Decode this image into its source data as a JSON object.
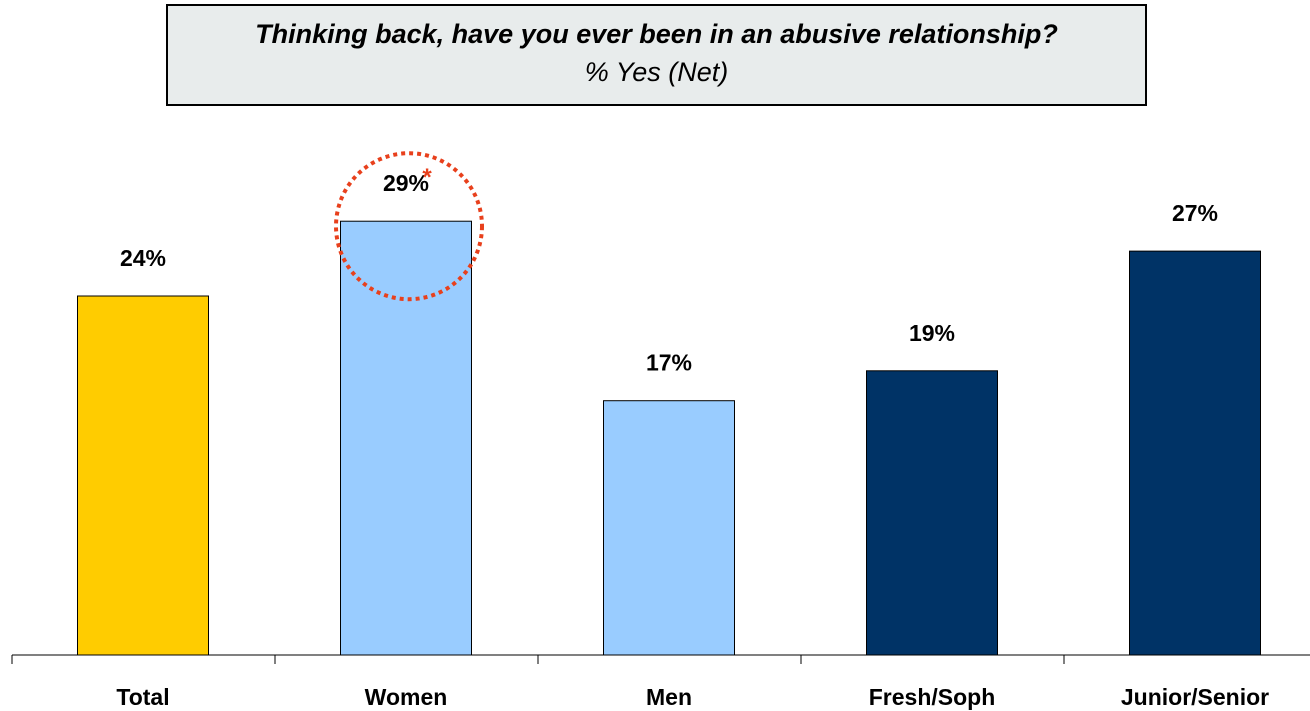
{
  "chart_data": {
    "type": "bar",
    "title": "Thinking back, have you ever been in an abusive relationship?",
    "subtitle": "% Yes (Net)",
    "categories": [
      "Total",
      "Women",
      "Men",
      "Fresh/Soph",
      "Junior/Senior"
    ],
    "values": [
      24,
      29,
      17,
      19,
      27
    ],
    "value_labels": [
      "24%",
      "29%",
      "17%",
      "19%",
      "27%"
    ],
    "bar_colors": [
      "#ffcc00",
      "#99ccff",
      "#99ccff",
      "#003366",
      "#003366"
    ],
    "highlight": {
      "category": "Women",
      "marker": "*",
      "color": "#e8401c"
    },
    "ylim": [
      0,
      30
    ],
    "grid": false,
    "legend": "none"
  }
}
